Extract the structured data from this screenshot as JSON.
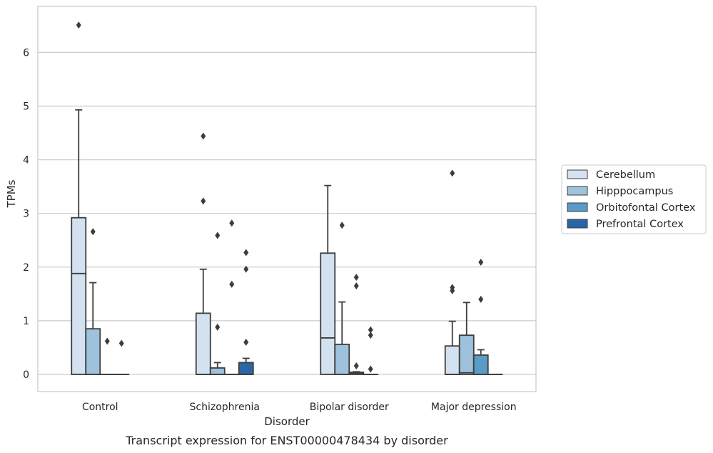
{
  "chart_data": {
    "type": "box",
    "title": "",
    "caption": "Transcript expression for ENST00000478434 by disorder",
    "xlabel": "Disorder",
    "ylabel": "TPMs",
    "ylim": [
      -0.32,
      6.85
    ],
    "yticks": [
      0,
      1,
      2,
      3,
      4,
      5,
      6
    ],
    "grid": "horizontal",
    "legend_position": "right",
    "categories": [
      "Control",
      "Schizophrenia",
      "Bipolar disorder",
      "Major depression"
    ],
    "series": [
      {
        "name": "Cerebellum",
        "color": "#d3e1f0",
        "boxes": [
          {
            "q1": 0,
            "median": 1.88,
            "q3": 2.92,
            "whisker_low": 0,
            "whisker_high": 4.93,
            "outliers": [
              6.51
            ]
          },
          {
            "q1": 0,
            "median": 0,
            "q3": 1.14,
            "whisker_low": 0,
            "whisker_high": 1.96,
            "outliers": [
              4.44,
              3.23
            ]
          },
          {
            "q1": 0,
            "median": 0.68,
            "q3": 2.26,
            "whisker_low": 0,
            "whisker_high": 3.52,
            "outliers": []
          },
          {
            "q1": 0,
            "median": 0,
            "q3": 0.53,
            "whisker_low": 0,
            "whisker_high": 0.99,
            "outliers": [
              3.75,
              1.62,
              1.56
            ]
          }
        ]
      },
      {
        "name": "Hipppocampus",
        "color": "#9ec2db",
        "boxes": [
          {
            "q1": 0,
            "median": 0,
            "q3": 0.85,
            "whisker_low": 0,
            "whisker_high": 1.71,
            "outliers": [
              2.66
            ]
          },
          {
            "q1": 0,
            "median": 0,
            "q3": 0.12,
            "whisker_low": 0,
            "whisker_high": 0.22,
            "outliers": [
              2.59,
              0.88
            ]
          },
          {
            "q1": 0,
            "median": 0,
            "q3": 0.56,
            "whisker_low": 0,
            "whisker_high": 1.35,
            "outliers": [
              2.78
            ]
          },
          {
            "q1": 0,
            "median": 0.03,
            "q3": 0.73,
            "whisker_low": 0,
            "whisker_high": 1.34,
            "outliers": []
          }
        ]
      },
      {
        "name": "Orbitofontal Cortex",
        "color": "#5a9cc8",
        "boxes": [
          {
            "q1": 0,
            "median": 0,
            "q3": 0,
            "whisker_low": 0,
            "whisker_high": 0,
            "outliers": [
              0.62
            ]
          },
          {
            "q1": 0,
            "median": 0,
            "q3": 0,
            "whisker_low": 0,
            "whisker_high": 0,
            "outliers": [
              2.82,
              1.68
            ]
          },
          {
            "q1": 0,
            "median": 0.02,
            "q3": 0.04,
            "whisker_low": 0,
            "whisker_high": 0.05,
            "outliers": [
              1.81,
              1.65,
              0.16
            ]
          },
          {
            "q1": 0,
            "median": 0,
            "q3": 0.36,
            "whisker_low": 0,
            "whisker_high": 0.46,
            "outliers": [
              2.09,
              1.4
            ]
          }
        ]
      },
      {
        "name": "Prefrontal Cortex",
        "color": "#2a66a6",
        "boxes": [
          {
            "q1": 0,
            "median": 0,
            "q3": 0,
            "whisker_low": 0,
            "whisker_high": 0,
            "outliers": [
              0.58
            ]
          },
          {
            "q1": 0,
            "median": 0,
            "q3": 0.22,
            "whisker_low": 0,
            "whisker_high": 0.3,
            "outliers": [
              2.27,
              1.96,
              0.6
            ]
          },
          {
            "q1": 0,
            "median": 0,
            "q3": 0,
            "whisker_low": 0,
            "whisker_high": 0,
            "outliers": [
              0.83,
              0.73,
              0.1
            ]
          },
          {
            "q1": 0,
            "median": 0,
            "q3": 0,
            "whisker_low": 0,
            "whisker_high": 0,
            "outliers": []
          }
        ]
      }
    ]
  }
}
